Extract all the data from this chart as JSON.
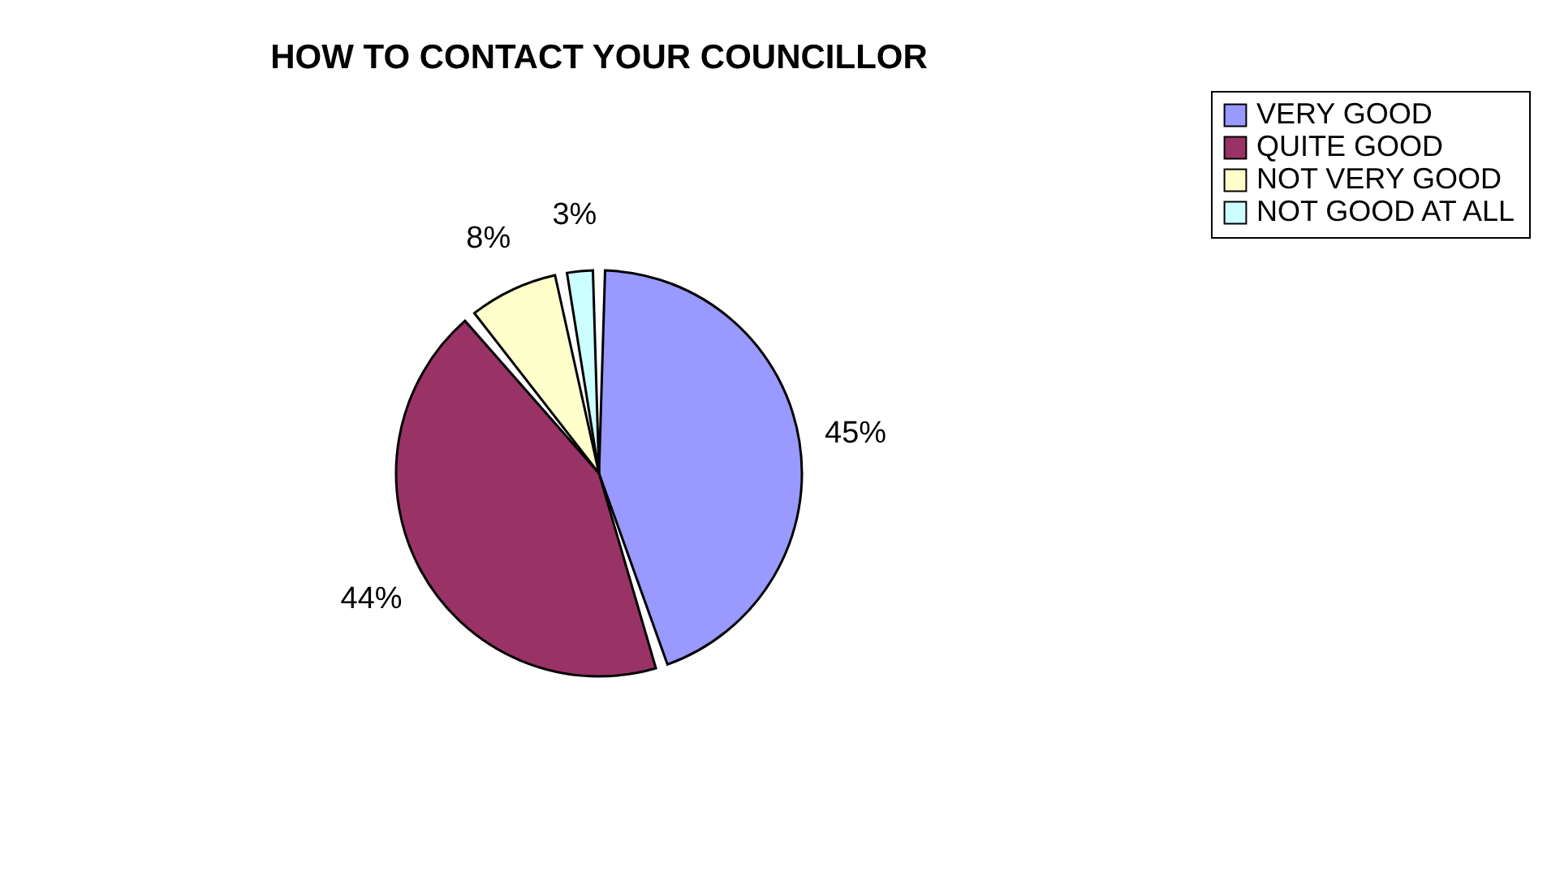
{
  "chart_data": {
    "type": "pie",
    "title": "HOW TO CONTACT YOUR COUNCILLOR",
    "categories": [
      "VERY GOOD",
      "QUITE GOOD",
      "NOT VERY GOOD",
      "NOT GOOD AT ALL"
    ],
    "values": [
      45,
      44,
      8,
      3
    ],
    "colors": [
      "#9999ff",
      "#993366",
      "#ffffcc",
      "#ccffff"
    ],
    "value_labels": [
      "45%",
      "44%",
      "8%",
      "3%"
    ],
    "legend": "right"
  }
}
